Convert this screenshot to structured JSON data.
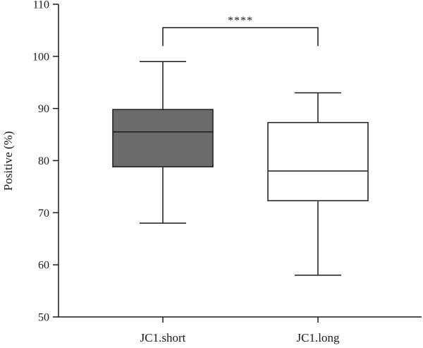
{
  "chart_data": {
    "type": "box",
    "ylabel": "Positive (%)",
    "xlabel": "",
    "ylim": [
      50,
      110
    ],
    "yticks": [
      50,
      60,
      70,
      80,
      90,
      100,
      110
    ],
    "categories": [
      "JC1.short",
      "JC1.long"
    ],
    "boxes": [
      {
        "category": "JC1.short",
        "min": 68,
        "q1": 78.8,
        "median": 85.5,
        "q3": 89.8,
        "max": 99,
        "fill": "#6b6b6b"
      },
      {
        "category": "JC1.long",
        "min": 58,
        "q1": 72.3,
        "median": 78,
        "q3": 87.3,
        "max": 93,
        "fill": "#ffffff"
      }
    ],
    "significance": {
      "label": "****",
      "between": [
        "JC1.short",
        "JC1.long"
      ],
      "y": 105.5
    },
    "colors": {
      "axis": "#1a1a1a",
      "stroke": "#1a1a1a"
    }
  }
}
